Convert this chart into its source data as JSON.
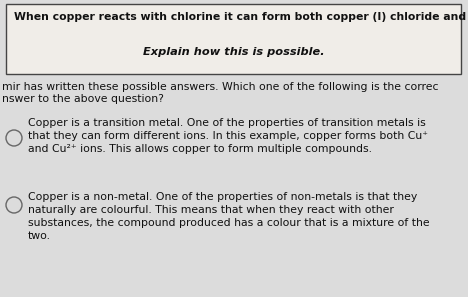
{
  "bg_color": "#dcdcdc",
  "box_bg": "#f0ede8",
  "box_border": "#444444",
  "box_title1": "When copper reacts with chlorine it can form both copper (I) chloride and copper (II) chloride.",
  "box_title2": "Explain how this is possible.",
  "intro_line1": "mir has written these possible answers. Which one of the following is the correc",
  "intro_line2": "nswer to the above question?",
  "answer1_lines": [
    "Copper is a transition metal. One of the properties of transition metals is",
    "that they can form different ions. In this example, copper forms both Cu⁺",
    "and Cu²⁺ ions. This allows copper to form multiple compounds."
  ],
  "answer2_lines": [
    "Copper is a non-metal. One of the properties of non-metals is that they",
    "naturally are colourful. This means that when they react with other",
    "substances, the compound produced has a colour that is a mixture of the",
    "two."
  ],
  "text_color": "#111111",
  "font_size_box1": 7.8,
  "font_size_box2": 8.2,
  "font_size_body": 7.8,
  "font_size_answer": 7.8
}
